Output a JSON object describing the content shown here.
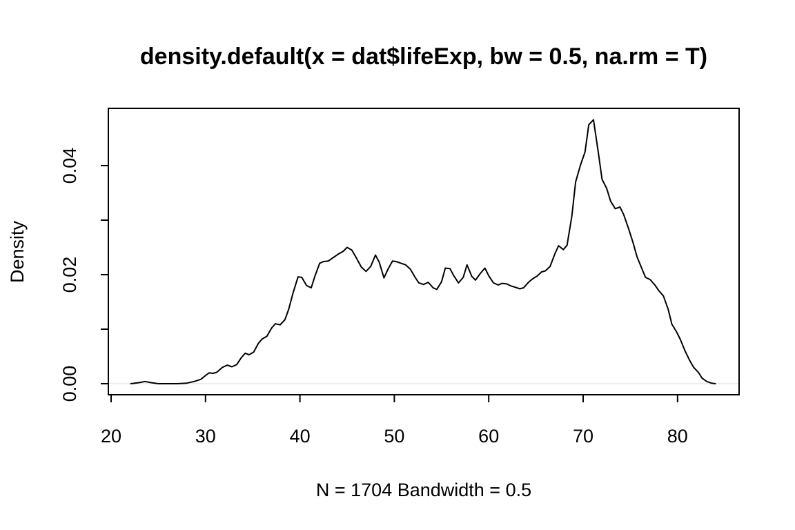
{
  "chart_data": {
    "type": "line",
    "title": "density.default(x = dat$lifeExp, bw = 0.5, na.rm = T)",
    "xlabel": "N = 1704   Bandwidth = 0.5",
    "ylabel": "Density",
    "xlim": [
      20,
      86
    ],
    "ylim": [
      0,
      0.05
    ],
    "xticks": [
      20,
      30,
      40,
      50,
      60,
      70,
      80
    ],
    "xtick_labels": [
      "20",
      "30",
      "40",
      "50",
      "60",
      "70",
      "80"
    ],
    "yticks": [
      0.0,
      0.01,
      0.02,
      0.03,
      0.04
    ],
    "ytick_labels": [
      "0.00",
      "",
      "0.02",
      "",
      "0.04"
    ],
    "grid": false,
    "baseline": 0,
    "line_color": "#000000",
    "series": [
      {
        "x": [
          22.1,
          23.0,
          23.6,
          24.2,
          25.0,
          26.0,
          27.0,
          28.0,
          28.8,
          29.5,
          30.0,
          30.4,
          30.8,
          31.2,
          31.8,
          32.3,
          32.8,
          33.3,
          33.8,
          34.2,
          34.6,
          35.1,
          35.6,
          36.0,
          36.5,
          37.0,
          37.4,
          37.9,
          38.4,
          38.8,
          39.3,
          39.8,
          40.2,
          40.7,
          41.2,
          41.6,
          42.1,
          42.5,
          43.0,
          43.5,
          44.0,
          44.6,
          45.0,
          45.5,
          46.0,
          46.5,
          47.0,
          47.5,
          48.0,
          48.4,
          48.9,
          49.3,
          49.8,
          50.2,
          50.7,
          51.2,
          51.7,
          52.2,
          52.6,
          53.1,
          53.6,
          54.1,
          54.5,
          55.0,
          55.4,
          55.9,
          56.3,
          56.8,
          57.3,
          57.7,
          58.2,
          58.6,
          59.1,
          59.6,
          60.0,
          60.5,
          61.0,
          61.4,
          61.9,
          62.4,
          62.8,
          63.3,
          63.7,
          64.2,
          64.7,
          65.1,
          65.6,
          66.0,
          66.5,
          67.0,
          67.4,
          67.9,
          68.3,
          68.8,
          69.2,
          69.7,
          70.2,
          70.6,
          71.1,
          71.6,
          72.0,
          72.5,
          72.9,
          73.4,
          73.9,
          74.3,
          74.8,
          75.3,
          75.7,
          76.2,
          76.6,
          77.1,
          77.6,
          78.0,
          78.5,
          79.0,
          79.4,
          79.9,
          80.3,
          80.8,
          81.3,
          81.7,
          82.2,
          82.6,
          83.1,
          83.6,
          84.0
        ],
        "y": [
          0.0,
          0.0002,
          0.0004,
          0.0002,
          0.0,
          0.0,
          0.0,
          0.0001,
          0.0004,
          0.0008,
          0.0015,
          0.002,
          0.0019,
          0.0021,
          0.003,
          0.0034,
          0.0031,
          0.0035,
          0.0048,
          0.0056,
          0.0053,
          0.0058,
          0.0074,
          0.0082,
          0.0087,
          0.0102,
          0.011,
          0.0108,
          0.0117,
          0.0136,
          0.0168,
          0.0196,
          0.0195,
          0.018,
          0.0176,
          0.0198,
          0.0221,
          0.0224,
          0.0225,
          0.0231,
          0.0237,
          0.0243,
          0.025,
          0.0245,
          0.023,
          0.0214,
          0.0206,
          0.0215,
          0.0236,
          0.0223,
          0.0194,
          0.0209,
          0.0225,
          0.0224,
          0.0221,
          0.0218,
          0.021,
          0.0195,
          0.0185,
          0.0182,
          0.0186,
          0.0176,
          0.0173,
          0.0187,
          0.0212,
          0.0211,
          0.0198,
          0.0185,
          0.0195,
          0.0218,
          0.0197,
          0.019,
          0.0202,
          0.0212,
          0.0198,
          0.0185,
          0.0181,
          0.0184,
          0.0183,
          0.0179,
          0.0177,
          0.0174,
          0.0176,
          0.0186,
          0.0193,
          0.0197,
          0.0205,
          0.0207,
          0.0215,
          0.0238,
          0.0253,
          0.0246,
          0.0254,
          0.0307,
          0.037,
          0.04,
          0.0425,
          0.0475,
          0.0484,
          0.0425,
          0.0375,
          0.0358,
          0.0335,
          0.0321,
          0.0324,
          0.031,
          0.0285,
          0.0258,
          0.0233,
          0.0212,
          0.0195,
          0.0191,
          0.0181,
          0.0171,
          0.0161,
          0.0137,
          0.0109,
          0.0095,
          0.0081,
          0.006,
          0.0042,
          0.003,
          0.0021,
          0.001,
          0.0004,
          0.0001,
          0.0
        ]
      }
    ]
  }
}
